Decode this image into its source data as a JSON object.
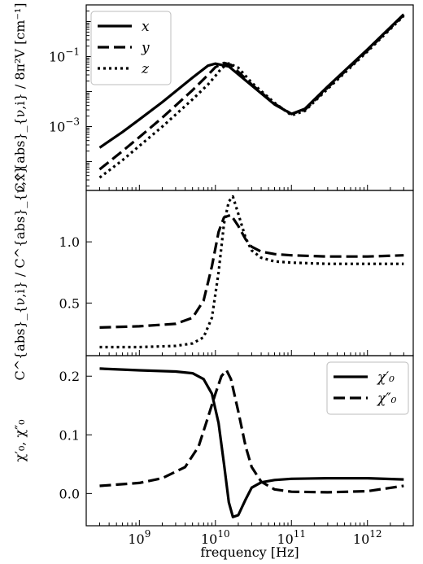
{
  "chart_data": [
    {
      "type": "line",
      "panel": "top",
      "ylabel": "C^{abs}_{ν,i} / 8π²V  [cm⁻¹]",
      "xscale": "log",
      "yscale": "log",
      "xlim": [
        200000000.0,
        4000000000000.0
      ],
      "ylim": [
        1.5e-05,
        3.0
      ],
      "yticks": [
        {
          "value": 0.1,
          "base": "10",
          "exp": "−1"
        },
        {
          "value": 0.001,
          "base": "10",
          "exp": "−3"
        }
      ],
      "legend": {
        "placement": "top-left",
        "entries": [
          "x",
          "y",
          "z"
        ]
      },
      "series": [
        {
          "name": "x",
          "dash": "solid",
          "x": [
            300000000.0,
            600000000.0,
            1000000000.0,
            2000000000.0,
            5000000000.0,
            8000000000.0,
            10000000000.0,
            15000000000.0,
            30000000000.0,
            60000000000.0,
            100000000000.0,
            150000000000.0,
            300000000000.0,
            1000000000000.0,
            3000000000000.0
          ],
          "y": [
            0.00025,
            0.0007,
            0.0016,
            0.005,
            0.025,
            0.055,
            0.063,
            0.052,
            0.015,
            0.0043,
            0.0023,
            0.0032,
            0.014,
            0.16,
            1.6
          ]
        },
        {
          "name": "y",
          "dash": "dashed",
          "x": [
            300000000.0,
            600000000.0,
            1000000000.0,
            2000000000.0,
            5000000000.0,
            8000000000.0,
            10000000000.0,
            13000000000.0,
            16000000000.0,
            30000000000.0,
            60000000000.0,
            100000000000.0,
            150000000000.0,
            300000000000.0,
            1000000000000.0,
            3000000000000.0
          ],
          "y": [
            6e-05,
            0.0002,
            0.0005,
            0.0018,
            0.011,
            0.03,
            0.05,
            0.066,
            0.058,
            0.016,
            0.0045,
            0.0023,
            0.003,
            0.013,
            0.15,
            1.55
          ]
        },
        {
          "name": "z",
          "dash": "dotted",
          "x": [
            300000000.0,
            600000000.0,
            1000000000.0,
            2000000000.0,
            5000000000.0,
            8000000000.0,
            10000000000.0,
            12000000000.0,
            15000000000.0,
            20000000000.0,
            30000000000.0,
            60000000000.0,
            100000000000.0,
            150000000000.0,
            300000000000.0,
            1000000000000.0,
            3000000000000.0
          ],
          "y": [
            3.5e-05,
            0.00011,
            0.00028,
            0.001,
            0.006,
            0.016,
            0.028,
            0.046,
            0.064,
            0.048,
            0.018,
            0.0048,
            0.0021,
            0.0028,
            0.012,
            0.14,
            1.45
          ]
        }
      ]
    },
    {
      "type": "line",
      "panel": "middle",
      "ylabel": "C^{abs}_{ν,i} / C^{abs}_{ν,x}",
      "xscale": "log",
      "yscale": "linear",
      "xlim": [
        200000000.0,
        4000000000000.0
      ],
      "ylim": [
        0.07,
        1.42
      ],
      "yticks": [
        {
          "value": 1.0,
          "label": "1.0"
        },
        {
          "value": 0.5,
          "label": "0.5"
        }
      ],
      "series": [
        {
          "name": "y",
          "dash": "dashed",
          "x": [
            300000000.0,
            1000000000.0,
            3000000000.0,
            5000000000.0,
            7000000000.0,
            9000000000.0,
            11000000000.0,
            13000000000.0,
            16000000000.0,
            20000000000.0,
            25000000000.0,
            30000000000.0,
            40000000000.0,
            60000000000.0,
            100000000000.0,
            300000000000.0,
            1000000000000.0,
            3000000000000.0
          ],
          "y": [
            0.3,
            0.31,
            0.33,
            0.38,
            0.52,
            0.8,
            1.08,
            1.2,
            1.22,
            1.13,
            1.02,
            0.96,
            0.92,
            0.9,
            0.89,
            0.88,
            0.88,
            0.89
          ]
        },
        {
          "name": "z",
          "dash": "dotted",
          "x": [
            300000000.0,
            1000000000.0,
            3000000000.0,
            5000000000.0,
            7000000000.0,
            9000000000.0,
            11000000000.0,
            13000000000.0,
            15000000000.0,
            17000000000.0,
            20000000000.0,
            25000000000.0,
            30000000000.0,
            40000000000.0,
            60000000000.0,
            100000000000.0,
            300000000000.0,
            1000000000000.0,
            3000000000000.0
          ],
          "y": [
            0.14,
            0.14,
            0.15,
            0.17,
            0.22,
            0.38,
            0.75,
            1.15,
            1.33,
            1.37,
            1.23,
            1.03,
            0.93,
            0.87,
            0.84,
            0.83,
            0.82,
            0.82,
            0.82
          ]
        }
      ]
    },
    {
      "type": "line",
      "panel": "bottom",
      "ylabel": "χ′₀, χ″₀",
      "xlabel": "frequency [Hz]",
      "xscale": "log",
      "yscale": "linear",
      "xlim": [
        200000000.0,
        4000000000000.0
      ],
      "ylim": [
        -0.055,
        0.235
      ],
      "yticks": [
        {
          "value": 0.2,
          "label": "0.2"
        },
        {
          "value": 0.1,
          "label": "0.1"
        },
        {
          "value": 0.0,
          "label": "0.0"
        }
      ],
      "xticks": [
        {
          "value": 1000000000.0,
          "base": "10",
          "exp": "9"
        },
        {
          "value": 10000000000.0,
          "base": "10",
          "exp": "10"
        },
        {
          "value": 100000000000.0,
          "base": "10",
          "exp": "11"
        },
        {
          "value": 1000000000000.0,
          "base": "10",
          "exp": "12"
        }
      ],
      "legend": {
        "placement": "top-right",
        "entries": [
          "χ′₀",
          "χ″₀"
        ]
      },
      "series": [
        {
          "name": "χ′₀",
          "dash": "solid",
          "x": [
            300000000.0,
            1000000000.0,
            3000000000.0,
            5000000000.0,
            7000000000.0,
            9000000000.0,
            11000000000.0,
            13000000000.0,
            15000000000.0,
            17000000000.0,
            20000000000.0,
            25000000000.0,
            30000000000.0,
            40000000000.0,
            60000000000.0,
            100000000000.0,
            300000000000.0,
            1000000000000.0,
            3000000000000.0
          ],
          "y": [
            0.213,
            0.21,
            0.208,
            0.205,
            0.195,
            0.17,
            0.12,
            0.05,
            -0.015,
            -0.04,
            -0.037,
            -0.01,
            0.01,
            0.019,
            0.023,
            0.025,
            0.026,
            0.026,
            0.024
          ]
        },
        {
          "name": "χ″₀",
          "dash": "dashed",
          "x": [
            300000000.0,
            1000000000.0,
            2000000000.0,
            4000000000.0,
            6000000000.0,
            8000000000.0,
            10000000000.0,
            12000000000.0,
            14000000000.0,
            16000000000.0,
            20000000000.0,
            25000000000.0,
            30000000000.0,
            40000000000.0,
            60000000000.0,
            100000000000.0,
            300000000000.0,
            1000000000000.0,
            3000000000000.0
          ],
          "y": [
            0.013,
            0.018,
            0.026,
            0.045,
            0.08,
            0.13,
            0.17,
            0.2,
            0.21,
            0.195,
            0.14,
            0.08,
            0.045,
            0.02,
            0.007,
            0.003,
            0.002,
            0.004,
            0.013
          ]
        }
      ]
    }
  ]
}
